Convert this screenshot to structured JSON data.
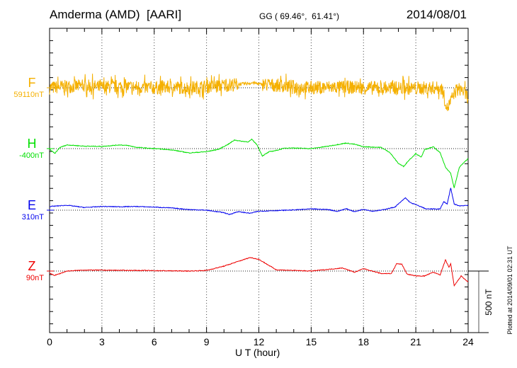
{
  "header": {
    "station": "Amderma (AMD)  [AARI]",
    "coords": "GG ( 69.46°,  61.41°)",
    "date": "2014/08/01"
  },
  "footer": {
    "plotted": "Plotted at 2014/09/01 02:31 UT"
  },
  "chart_data": {
    "type": "line",
    "xlabel": "U T (hour)",
    "xlim": [
      0,
      24
    ],
    "xticks": [
      "0",
      "3",
      "6",
      "9",
      "12",
      "15",
      "18",
      "21",
      "24"
    ],
    "scale_bar": {
      "label": "500 nT",
      "value_nT": 500
    },
    "grid": "dotted at 3-hour intervals and series baselines",
    "series": [
      {
        "name": "F",
        "baseline_label": "59110nT",
        "color": "#f5b000",
        "noisy": true,
        "points": [
          [
            0,
            0
          ],
          [
            1,
            10
          ],
          [
            2,
            15
          ],
          [
            3,
            5
          ],
          [
            4,
            10
          ],
          [
            5,
            5
          ],
          [
            6,
            0
          ],
          [
            7,
            5
          ],
          [
            8,
            0
          ],
          [
            9,
            10
          ],
          [
            10,
            20
          ],
          [
            11,
            30
          ],
          [
            11.7,
            40
          ],
          [
            12,
            30
          ],
          [
            13,
            20
          ],
          [
            14,
            10
          ],
          [
            15,
            0
          ],
          [
            16,
            5
          ],
          [
            17,
            5
          ],
          [
            18,
            0
          ],
          [
            19,
            -5
          ],
          [
            20,
            0
          ],
          [
            21,
            -5
          ],
          [
            22,
            0
          ],
          [
            22.5,
            -5
          ],
          [
            22.8,
            -170
          ],
          [
            23,
            -110
          ],
          [
            23.3,
            -20
          ],
          [
            23.6,
            -10
          ],
          [
            24,
            -80
          ]
        ]
      },
      {
        "name": "H",
        "baseline_label": "-400nT",
        "color": "#00e000",
        "noisy": false,
        "points": [
          [
            0,
            -5
          ],
          [
            0.3,
            -40
          ],
          [
            0.6,
            10
          ],
          [
            1,
            30
          ],
          [
            1.5,
            25
          ],
          [
            2,
            20
          ],
          [
            3,
            18
          ],
          [
            4,
            30
          ],
          [
            4.5,
            25
          ],
          [
            5,
            10
          ],
          [
            6,
            0
          ],
          [
            7,
            -10
          ],
          [
            8,
            -35
          ],
          [
            9,
            -25
          ],
          [
            9.7,
            -5
          ],
          [
            10.3,
            40
          ],
          [
            10.6,
            70
          ],
          [
            11,
            60
          ],
          [
            11.4,
            55
          ],
          [
            11.6,
            75
          ],
          [
            11.9,
            30
          ],
          [
            12.2,
            -60
          ],
          [
            12.6,
            -25
          ],
          [
            13,
            -15
          ],
          [
            13.5,
            5
          ],
          [
            14,
            5
          ],
          [
            15,
            0
          ],
          [
            16,
            20
          ],
          [
            17,
            45
          ],
          [
            17.5,
            35
          ],
          [
            18,
            15
          ],
          [
            19,
            10
          ],
          [
            19.5,
            -30
          ],
          [
            20,
            -120
          ],
          [
            20.3,
            -145
          ],
          [
            20.6,
            -95
          ],
          [
            21,
            -40
          ],
          [
            21.3,
            -70
          ],
          [
            21.5,
            -10
          ],
          [
            22,
            15
          ],
          [
            22.4,
            -35
          ],
          [
            22.7,
            -150
          ],
          [
            23,
            -200
          ],
          [
            23.2,
            -320
          ],
          [
            23.5,
            -150
          ],
          [
            24,
            -80
          ]
        ]
      },
      {
        "name": "E",
        "baseline_label": "310nT",
        "color": "#0000ee",
        "noisy": false,
        "points": [
          [
            0,
            30
          ],
          [
            1,
            40
          ],
          [
            2,
            22
          ],
          [
            3,
            30
          ],
          [
            4,
            28
          ],
          [
            5,
            30
          ],
          [
            6,
            25
          ],
          [
            7,
            18
          ],
          [
            8,
            5
          ],
          [
            9,
            0
          ],
          [
            10,
            -20
          ],
          [
            10.3,
            -35
          ],
          [
            10.8,
            -12
          ],
          [
            11.5,
            -25
          ],
          [
            12,
            -8
          ],
          [
            13,
            -3
          ],
          [
            14,
            2
          ],
          [
            15,
            10
          ],
          [
            16,
            5
          ],
          [
            16.5,
            -10
          ],
          [
            17,
            12
          ],
          [
            17.5,
            -12
          ],
          [
            18,
            8
          ],
          [
            18.5,
            -8
          ],
          [
            19,
            0
          ],
          [
            19.8,
            25
          ],
          [
            20.4,
            100
          ],
          [
            20.7,
            60
          ],
          [
            21,
            45
          ],
          [
            21.6,
            10
          ],
          [
            22,
            10
          ],
          [
            22.4,
            10
          ],
          [
            22.6,
            70
          ],
          [
            22.8,
            50
          ],
          [
            23,
            180
          ],
          [
            23.2,
            50
          ],
          [
            23.5,
            35
          ],
          [
            24,
            40
          ]
        ]
      },
      {
        "name": "Z",
        "baseline_label": "90nT",
        "color": "#ee0000",
        "noisy": false,
        "points": [
          [
            0,
            -20
          ],
          [
            0.3,
            -35
          ],
          [
            1,
            0
          ],
          [
            2,
            8
          ],
          [
            5,
            5
          ],
          [
            8,
            0
          ],
          [
            9,
            5
          ],
          [
            10,
            40
          ],
          [
            11.5,
            110
          ],
          [
            12,
            95
          ],
          [
            13,
            10
          ],
          [
            15,
            0
          ],
          [
            16.8,
            25
          ],
          [
            17.5,
            -10
          ],
          [
            18,
            20
          ],
          [
            19,
            -20
          ],
          [
            19.6,
            -20
          ],
          [
            19.9,
            60
          ],
          [
            20.2,
            55
          ],
          [
            20.5,
            -25
          ],
          [
            21,
            -40
          ],
          [
            21.5,
            -40
          ],
          [
            22,
            -10
          ],
          [
            22.4,
            -30
          ],
          [
            22.7,
            90
          ],
          [
            22.9,
            30
          ],
          [
            23,
            60
          ],
          [
            23.2,
            -120
          ],
          [
            23.6,
            -40
          ],
          [
            24,
            -90
          ]
        ]
      }
    ]
  }
}
